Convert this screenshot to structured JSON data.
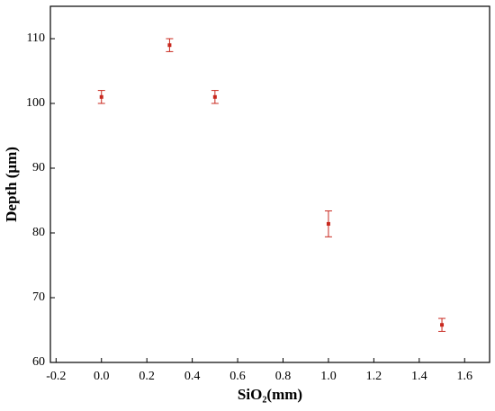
{
  "chart_data": {
    "type": "scatter",
    "x_label": "SiO₂(mm)",
    "y_label": "Depth (μm)",
    "x": [
      0,
      0.3,
      0.5,
      1.0,
      1.5
    ],
    "values": [
      101,
      109,
      101,
      81.4,
      65.8
    ],
    "errors": [
      1,
      1,
      1,
      2,
      1
    ],
    "color": "#c8281e",
    "xlim": [
      -0.225,
      1.71
    ],
    "ylim": [
      60,
      115
    ],
    "xticks": [
      {
        "value": -0.2,
        "label": "-0.2"
      },
      {
        "value": 0,
        "label": "0.0"
      },
      0.2,
      0.4,
      0.6,
      0.8,
      {
        "value": 1,
        "label": "1.0"
      },
      1.2,
      1.4,
      1.6
    ],
    "yticks": [
      60,
      70,
      80,
      90,
      100,
      110
    ],
    "grid": false
  }
}
